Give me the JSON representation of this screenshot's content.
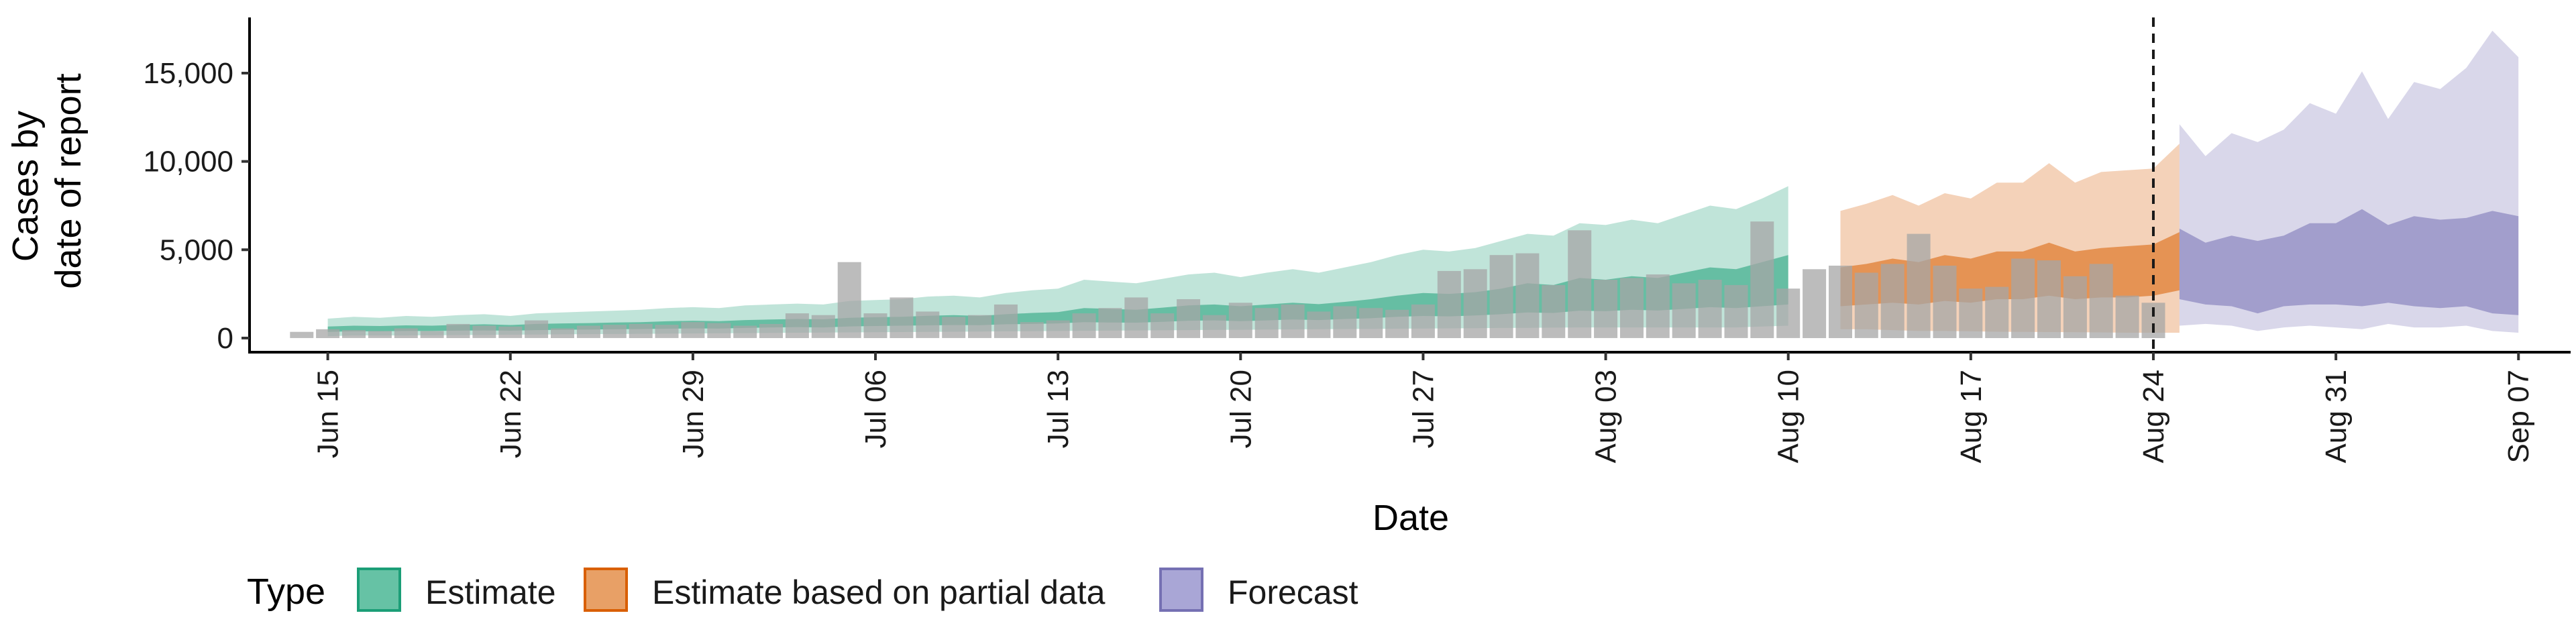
{
  "chart_data": {
    "type": "area",
    "xlabel": "Date",
    "ylabel_lines": [
      "Cases by",
      "date of report"
    ],
    "ylim": [
      -800,
      18000
    ],
    "xlim": [
      "2020-06-12",
      "2020-09-09"
    ],
    "yticks": [
      0,
      5000,
      10000,
      15000
    ],
    "ytick_labels": [
      "0",
      "5,000",
      "10,000",
      "15,000"
    ],
    "xticks": [
      "2020-06-15",
      "2020-06-22",
      "2020-06-29",
      "2020-07-06",
      "2020-07-13",
      "2020-07-20",
      "2020-07-27",
      "2020-08-03",
      "2020-08-10",
      "2020-08-17",
      "2020-08-24",
      "2020-08-31",
      "2020-09-07"
    ],
    "xtick_labels": [
      "Jun 15",
      "Jun 22",
      "Jun 29",
      "Jul 06",
      "Jul 13",
      "Jul 20",
      "Jul 27",
      "Aug 03",
      "Aug 10",
      "Aug 17",
      "Aug 24",
      "Aug 31",
      "Sep 07"
    ],
    "forecast_date": "2020-08-24",
    "legend": {
      "title": "Type",
      "position": "bottom",
      "entries": [
        {
          "label": "Estimate",
          "fill": "#66c2a5",
          "border": "#1b9e77"
        },
        {
          "label": "Estimate based on partial data",
          "fill": "#e8a066",
          "border": "#d95f02"
        },
        {
          "label": "Forecast",
          "fill": "#a9a6d6",
          "border": "#7570b3"
        }
      ]
    },
    "colors": {
      "estimate": "#1b9e77",
      "partial": "#d95f02",
      "forecast": "#7570b3",
      "bars": "#a6a6a6"
    },
    "reported_cases": {
      "start": "2020-06-14",
      "values": [
        350,
        500,
        450,
        400,
        550,
        400,
        800,
        700,
        650,
        1000,
        550,
        700,
        750,
        800,
        750,
        900,
        850,
        700,
        800,
        1400,
        1300,
        4300,
        1400,
        2300,
        1500,
        1200,
        1300,
        1900,
        900,
        1000,
        1400,
        1700,
        2300,
        1400,
        2200,
        1300,
        2000,
        1700,
        1900,
        1500,
        1800,
        1700,
        1600,
        1900,
        3800,
        3900,
        4700,
        4800,
        3000,
        6100,
        3300,
        3400,
        3600,
        3100,
        3300,
        3000,
        6600,
        2800,
        3900,
        4100,
        3700,
        4200,
        5900,
        4100,
        2800,
        2900,
        4500,
        4400,
        3500,
        4200,
        2400,
        2000
      ]
    },
    "estimate": {
      "start": "2020-06-15",
      "outer_low": [
        100,
        150,
        150,
        150,
        160,
        170,
        180,
        190,
        200,
        210,
        220,
        230,
        240,
        250,
        260,
        270,
        280,
        290,
        300,
        310,
        320,
        330,
        340,
        350,
        360,
        370,
        380,
        390,
        400,
        410,
        420,
        430,
        440,
        450,
        460,
        470,
        480,
        490,
        500,
        510,
        520,
        530,
        540,
        550,
        560,
        570,
        580,
        590,
        600,
        600,
        600,
        600,
        600,
        600,
        600,
        650,
        700
      ],
      "outer_high": [
        1100,
        1200,
        1150,
        1250,
        1200,
        1300,
        1350,
        1250,
        1400,
        1450,
        1500,
        1550,
        1600,
        1700,
        1750,
        1700,
        1850,
        1900,
        1950,
        1900,
        2100,
        2150,
        2200,
        2350,
        2400,
        2300,
        2550,
        2700,
        2800,
        3300,
        3200,
        3100,
        3350,
        3600,
        3700,
        3450,
        3700,
        3900,
        3700,
        4000,
        4300,
        4700,
        5000,
        4900,
        5100,
        5500,
        5900,
        5800,
        6500,
        6400,
        6700,
        6500,
        7000,
        7500,
        7300,
        7900,
        8600
      ],
      "inner_low": [
        350,
        380,
        380,
        400,
        400,
        420,
        430,
        420,
        450,
        470,
        480,
        500,
        510,
        530,
        550,
        540,
        570,
        600,
        620,
        600,
        660,
        680,
        700,
        720,
        740,
        730,
        780,
        800,
        830,
        900,
        880,
        870,
        920,
        980,
        1000,
        960,
        1000,
        1050,
        1020,
        1080,
        1120,
        1200,
        1250,
        1230,
        1280,
        1350,
        1450,
        1420,
        1550,
        1520,
        1600,
        1560,
        1650,
        1750,
        1700,
        1800,
        1900
      ],
      "inner_high": [
        650,
        700,
        680,
        720,
        700,
        750,
        780,
        740,
        800,
        830,
        850,
        880,
        900,
        950,
        980,
        960,
        1020,
        1050,
        1080,
        1060,
        1150,
        1180,
        1200,
        1260,
        1300,
        1250,
        1350,
        1420,
        1470,
        1700,
        1650,
        1600,
        1720,
        1850,
        1900,
        1800,
        1900,
        2000,
        1920,
        2050,
        2200,
        2400,
        2550,
        2500,
        2600,
        2800,
        3100,
        3000,
        3400,
        3300,
        3500,
        3400,
        3700,
        4000,
        3900,
        4300,
        4700
      ]
    },
    "partial": {
      "start": "2020-08-12",
      "outer_low": [
        500,
        500,
        450,
        400,
        400,
        380,
        360,
        350,
        340,
        330,
        320,
        300,
        300,
        300
      ],
      "outer_high": [
        7200,
        7600,
        8100,
        7500,
        8200,
        7900,
        8800,
        8800,
        9900,
        8800,
        9400,
        9500,
        9600,
        11000
      ],
      "inner_low": [
        1800,
        1900,
        2000,
        1900,
        2100,
        2000,
        2200,
        2200,
        2400,
        2200,
        2300,
        2300,
        2400,
        2700
      ],
      "inner_high": [
        4000,
        4200,
        4500,
        4300,
        4700,
        4500,
        4900,
        4900,
        5400,
        4900,
        5100,
        5200,
        5300,
        6000
      ]
    },
    "forecast": {
      "start": "2020-08-25",
      "outer_low": [
        700,
        800,
        700,
        400,
        600,
        700,
        600,
        500,
        800,
        600,
        600,
        700,
        400,
        300
      ],
      "outer_high": [
        12100,
        10300,
        11600,
        11100,
        11800,
        13300,
        12700,
        15100,
        12400,
        14500,
        14100,
        15300,
        17400,
        15900
      ],
      "inner_low": [
        2200,
        1900,
        1800,
        1400,
        1800,
        1900,
        1900,
        1800,
        2000,
        1800,
        1700,
        1800,
        1400,
        1300
      ],
      "inner_high": [
        6200,
        5400,
        5800,
        5500,
        5800,
        6500,
        6500,
        7300,
        6400,
        6900,
        6700,
        6800,
        7200,
        6900
      ]
    }
  }
}
